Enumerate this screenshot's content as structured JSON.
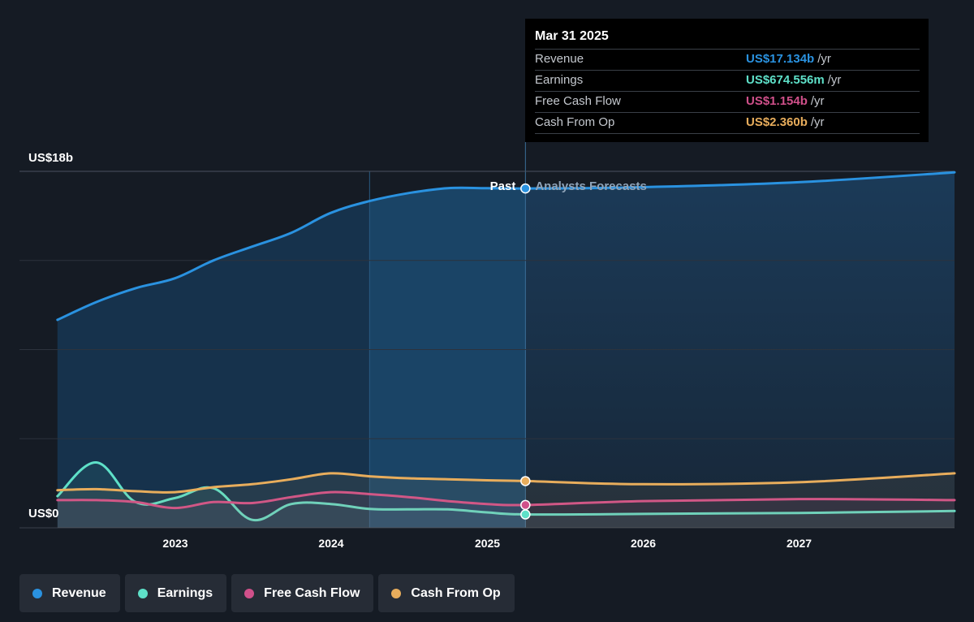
{
  "chart_data": {
    "type": "area",
    "y_axis": {
      "top_label": "US$18b",
      "bottom_label": "US$0",
      "ylim": [
        0,
        18
      ]
    },
    "x_ticks": [
      "2023",
      "2024",
      "2025",
      "2026",
      "2027"
    ],
    "divider": {
      "date": "Mar 31 2025",
      "past_label": "Past",
      "forecast_label": "Analysts Forecasts"
    },
    "series": [
      {
        "name": "Revenue",
        "color": "#2a92e0",
        "points": [
          [
            "2022-03-31",
            10.5
          ],
          [
            "2022-06-30",
            11.4
          ],
          [
            "2022-09-30",
            12.1
          ],
          [
            "2022-12-31",
            12.6
          ],
          [
            "2023-03-31",
            13.5
          ],
          [
            "2023-06-30",
            14.2
          ],
          [
            "2023-09-30",
            14.9
          ],
          [
            "2023-12-31",
            15.9
          ],
          [
            "2024-03-31",
            16.5
          ],
          [
            "2024-06-30",
            16.9
          ],
          [
            "2024-09-30",
            17.15
          ],
          [
            "2024-12-31",
            17.15
          ],
          [
            "2025-03-31",
            17.134
          ],
          [
            "2025-12-31",
            17.2
          ],
          [
            "2026-12-31",
            17.45
          ],
          [
            "2027-12-31",
            17.95
          ]
        ]
      },
      {
        "name": "Earnings",
        "color": "#5ee0c8",
        "points": [
          [
            "2022-03-31",
            1.6
          ],
          [
            "2022-06-30",
            3.3
          ],
          [
            "2022-09-30",
            1.3
          ],
          [
            "2022-12-31",
            1.5
          ],
          [
            "2023-03-31",
            2.0
          ],
          [
            "2023-06-30",
            0.4
          ],
          [
            "2023-09-30",
            1.2
          ],
          [
            "2023-12-31",
            1.2
          ],
          [
            "2024-03-31",
            0.95
          ],
          [
            "2024-06-30",
            0.93
          ],
          [
            "2024-09-30",
            0.93
          ],
          [
            "2024-12-31",
            0.78
          ],
          [
            "2025-03-31",
            0.675
          ],
          [
            "2025-12-31",
            0.7
          ],
          [
            "2026-12-31",
            0.75
          ],
          [
            "2027-12-31",
            0.85
          ]
        ]
      },
      {
        "name": "Free Cash Flow",
        "color": "#d0508a",
        "points": [
          [
            "2022-03-31",
            1.4
          ],
          [
            "2022-06-30",
            1.4
          ],
          [
            "2022-09-30",
            1.3
          ],
          [
            "2022-12-31",
            1.0
          ],
          [
            "2023-03-31",
            1.3
          ],
          [
            "2023-06-30",
            1.25
          ],
          [
            "2023-09-30",
            1.55
          ],
          [
            "2023-12-31",
            1.8
          ],
          [
            "2024-03-31",
            1.7
          ],
          [
            "2024-06-30",
            1.55
          ],
          [
            "2024-09-30",
            1.35
          ],
          [
            "2024-12-31",
            1.2
          ],
          [
            "2025-03-31",
            1.154
          ],
          [
            "2025-12-31",
            1.35
          ],
          [
            "2026-12-31",
            1.45
          ],
          [
            "2027-12-31",
            1.4
          ]
        ]
      },
      {
        "name": "Cash From Op",
        "color": "#e8ad5c",
        "points": [
          [
            "2022-03-31",
            1.9
          ],
          [
            "2022-06-30",
            1.95
          ],
          [
            "2022-09-30",
            1.85
          ],
          [
            "2022-12-31",
            1.8
          ],
          [
            "2023-03-31",
            2.05
          ],
          [
            "2023-06-30",
            2.2
          ],
          [
            "2023-09-30",
            2.45
          ],
          [
            "2023-12-31",
            2.75
          ],
          [
            "2024-03-31",
            2.6
          ],
          [
            "2024-06-30",
            2.5
          ],
          [
            "2024-09-30",
            2.45
          ],
          [
            "2024-12-31",
            2.4
          ],
          [
            "2025-03-31",
            2.36
          ],
          [
            "2025-12-31",
            2.2
          ],
          [
            "2026-12-31",
            2.3
          ],
          [
            "2027-12-31",
            2.75
          ]
        ]
      }
    ]
  },
  "tooltip": {
    "date": "Mar 31 2025",
    "rows": [
      {
        "label": "Revenue",
        "value": "US$17.134b",
        "unit": "/yr",
        "color": "#2a92e0"
      },
      {
        "label": "Earnings",
        "value": "US$674.556m",
        "unit": "/yr",
        "color": "#5ee0c8"
      },
      {
        "label": "Free Cash Flow",
        "value": "US$1.154b",
        "unit": "/yr",
        "color": "#d0508a"
      },
      {
        "label": "Cash From Op",
        "value": "US$2.360b",
        "unit": "/yr",
        "color": "#e8ad5c"
      }
    ]
  },
  "legend": [
    {
      "label": "Revenue",
      "color": "#2a92e0"
    },
    {
      "label": "Earnings",
      "color": "#5ee0c8"
    },
    {
      "label": "Free Cash Flow",
      "color": "#d0508a"
    },
    {
      "label": "Cash From Op",
      "color": "#e8ad5c"
    }
  ]
}
